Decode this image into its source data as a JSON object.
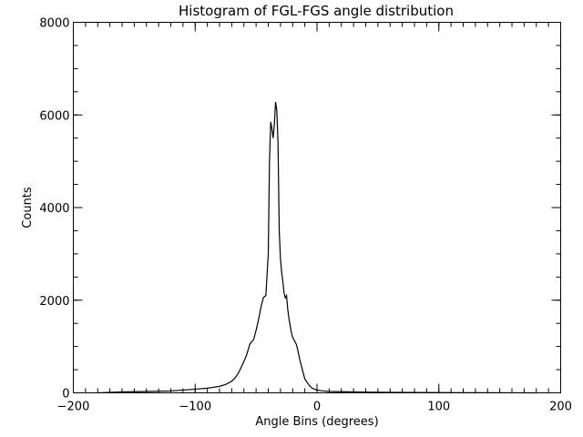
{
  "chart_data": {
    "type": "line",
    "title": "Histogram of FGL-FGS angle distribution",
    "xlabel": "Angle Bins (degrees)",
    "ylabel": "Counts",
    "xlim": [
      -200,
      200
    ],
    "ylim": [
      0,
      8000
    ],
    "grid": false,
    "legend": "none",
    "x_ticks": [
      -200,
      -100,
      0,
      100,
      200
    ],
    "y_ticks": [
      0,
      2000,
      4000,
      6000,
      8000
    ],
    "x_tick_labels": [
      "−200",
      "−100",
      "0",
      "100",
      "200"
    ],
    "y_tick_labels": [
      "0",
      "2000",
      "4000",
      "6000",
      "8000"
    ],
    "line_color": "#000000",
    "series": [
      {
        "x": [
          -180,
          -160,
          -140,
          -120,
          -110,
          -100,
          -90,
          -80,
          -75,
          -70,
          -67,
          -64,
          -61,
          -58,
          -55,
          -52,
          -50,
          -48,
          -46,
          -44,
          -42,
          -40,
          -39,
          -38,
          -37,
          -36,
          -35,
          -34,
          -33,
          -32,
          -31,
          -30,
          -29,
          -28,
          -27,
          -26,
          -25,
          -24,
          -23,
          -22,
          -21,
          -20,
          -19,
          -18,
          -17,
          -16,
          -14,
          -12,
          -10,
          -8,
          -6,
          -4,
          -2,
          0,
          5,
          10,
          20,
          30,
          40,
          60,
          80,
          100,
          120,
          140,
          160,
          180
        ],
        "y": [
          0,
          20,
          30,
          40,
          60,
          80,
          100,
          140,
          180,
          250,
          330,
          450,
          620,
          800,
          1060,
          1150,
          1350,
          1580,
          1850,
          2060,
          2100,
          3000,
          5000,
          5850,
          5700,
          5500,
          5800,
          6280,
          6100,
          5400,
          3500,
          2900,
          2600,
          2400,
          2150,
          2050,
          2100,
          1800,
          1600,
          1450,
          1300,
          1200,
          1150,
          1100,
          1050,
          950,
          700,
          500,
          300,
          220,
          150,
          100,
          80,
          60,
          40,
          30,
          25,
          20,
          15,
          10,
          8,
          5,
          3,
          2,
          1,
          0
        ]
      }
    ]
  }
}
